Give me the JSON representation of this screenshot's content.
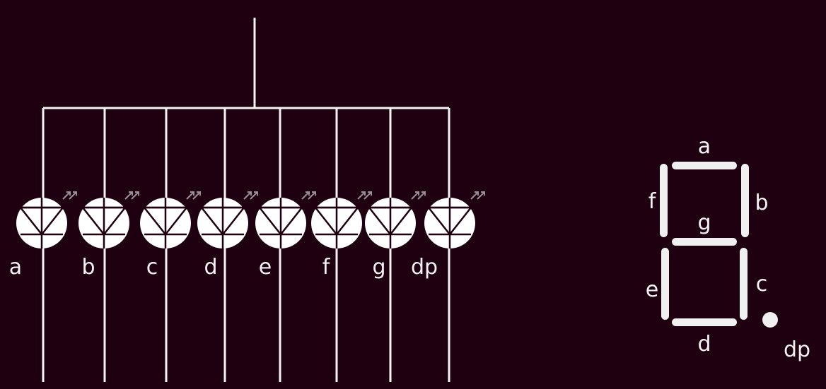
{
  "colors": {
    "background": "#1f0010",
    "wire": "#f4f4f4",
    "led_fill": "#ffffff",
    "led_symbol": "#1f0010",
    "segment": "#f0f0f0",
    "label": "#f2f2f2"
  },
  "led_circuit": {
    "leds": [
      {
        "id": "a",
        "label": "a"
      },
      {
        "id": "b",
        "label": "b"
      },
      {
        "id": "c",
        "label": "c"
      },
      {
        "id": "d",
        "label": "d"
      },
      {
        "id": "e",
        "label": "e"
      },
      {
        "id": "f",
        "label": "f"
      },
      {
        "id": "g",
        "label": "g"
      },
      {
        "id": "dp",
        "label": "dp"
      }
    ]
  },
  "seven_segment": {
    "segments": [
      {
        "id": "a",
        "label": "a"
      },
      {
        "id": "b",
        "label": "b"
      },
      {
        "id": "c",
        "label": "c"
      },
      {
        "id": "d",
        "label": "d"
      },
      {
        "id": "e",
        "label": "e"
      },
      {
        "id": "f",
        "label": "f"
      },
      {
        "id": "g",
        "label": "g"
      }
    ],
    "dot_label": "dp"
  }
}
